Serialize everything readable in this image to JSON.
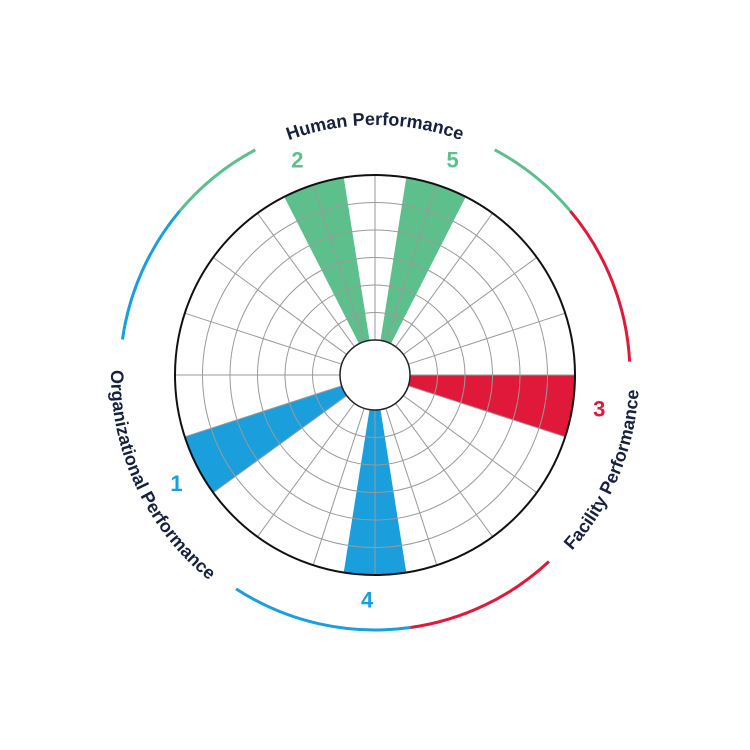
{
  "groups": [
    {
      "label": "Human Performance",
      "color": "#5dbf8c"
    },
    {
      "label": "Facility Performance",
      "color": "#e0193a"
    },
    {
      "label": "Organizational Performance",
      "color": "#1a9fdc"
    }
  ],
  "sectors": [
    {
      "label": "1",
      "color": "#1a9fdc"
    },
    {
      "label": "2",
      "color": "#5dbf8c"
    },
    {
      "label": "3",
      "color": "#e0193a"
    },
    {
      "label": "4",
      "color": "#1a9fdc"
    },
    {
      "label": "5",
      "color": "#5dbf8c"
    }
  ]
}
